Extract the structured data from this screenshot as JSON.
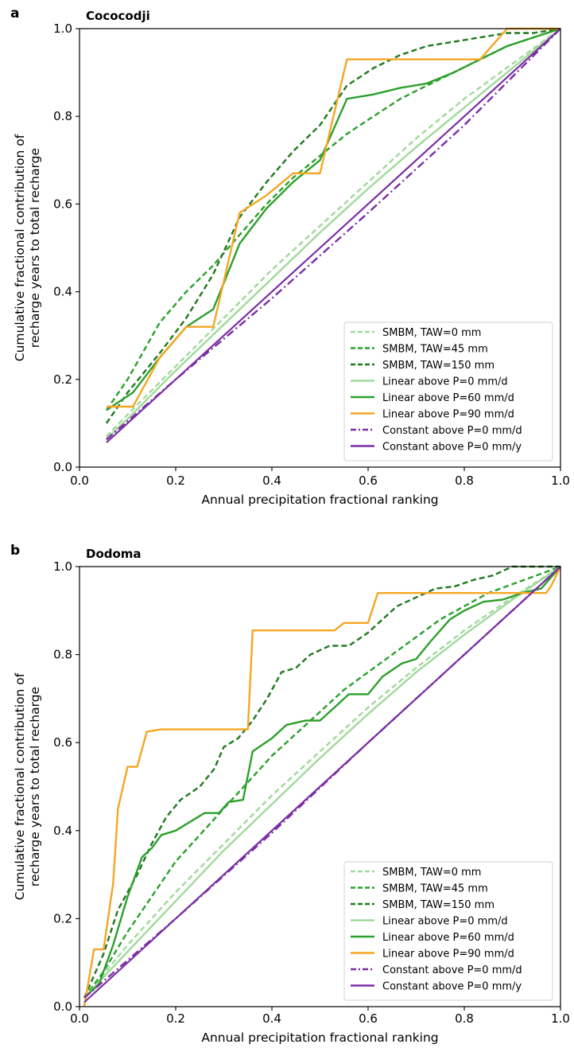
{
  "figure": {
    "panel_letters": [
      "a",
      "b"
    ]
  },
  "chart_data": [
    {
      "panel": "a",
      "type": "line",
      "title": "Cococodji",
      "xlabel": "Annual precipitation fractional ranking",
      "ylabel": [
        "Cumulative fractional contribution of",
        "recharge years to total recharge"
      ],
      "xlim": [
        0,
        1
      ],
      "ylim": [
        0,
        1
      ],
      "xticks": [
        "0.0",
        "0.2",
        "0.4",
        "0.6",
        "0.8",
        "1.0"
      ],
      "yticks": [
        "0.0",
        "0.2",
        "0.4",
        "0.6",
        "0.8",
        "1.0"
      ],
      "grid": false,
      "legend_position": "lower-right",
      "series": [
        {
          "name": "SMBM, TAW=0 mm",
          "color": "#a1d99b",
          "style": "dashed",
          "points": [
            [
              0.056,
              0.07
            ],
            [
              0.1,
              0.12
            ],
            [
              0.2,
              0.23
            ],
            [
              0.3,
              0.34
            ],
            [
              0.4,
              0.45
            ],
            [
              0.5,
              0.55
            ],
            [
              0.6,
              0.65
            ],
            [
              0.7,
              0.75
            ],
            [
              0.8,
              0.84
            ],
            [
              0.9,
              0.92
            ],
            [
              1.0,
              1.0
            ]
          ]
        },
        {
          "name": "SMBM, TAW=45 mm",
          "color": "#2ca02c",
          "style": "dashed",
          "points": [
            [
              0.056,
              0.13
            ],
            [
              0.1,
              0.2
            ],
            [
              0.167,
              0.33
            ],
            [
              0.222,
              0.4
            ],
            [
              0.278,
              0.46
            ],
            [
              0.333,
              0.53
            ],
            [
              0.389,
              0.6
            ],
            [
              0.444,
              0.66
            ],
            [
              0.5,
              0.71
            ],
            [
              0.556,
              0.76
            ],
            [
              0.611,
              0.8
            ],
            [
              0.667,
              0.84
            ],
            [
              0.722,
              0.87
            ],
            [
              0.778,
              0.9
            ],
            [
              0.833,
              0.93
            ],
            [
              0.889,
              0.96
            ],
            [
              0.944,
              0.98
            ],
            [
              1.0,
              1.0
            ]
          ]
        },
        {
          "name": "SMBM, TAW=150 mm",
          "color": "#1e7a1e",
          "style": "dashed",
          "points": [
            [
              0.056,
              0.1
            ],
            [
              0.1,
              0.17
            ],
            [
              0.167,
              0.26
            ],
            [
              0.222,
              0.34
            ],
            [
              0.278,
              0.44
            ],
            [
              0.333,
              0.57
            ],
            [
              0.389,
              0.65
            ],
            [
              0.444,
              0.72
            ],
            [
              0.5,
              0.78
            ],
            [
              0.556,
              0.87
            ],
            [
              0.611,
              0.91
            ],
            [
              0.667,
              0.94
            ],
            [
              0.722,
              0.96
            ],
            [
              0.778,
              0.97
            ],
            [
              0.833,
              0.98
            ],
            [
              0.889,
              0.99
            ],
            [
              0.944,
              0.99
            ],
            [
              1.0,
              1.0
            ]
          ]
        },
        {
          "name": "Linear above P=0 mm/d",
          "color": "#a1d99b",
          "style": "solid",
          "points": [
            [
              0.056,
              0.065
            ],
            [
              0.1,
              0.11
            ],
            [
              0.2,
              0.22
            ],
            [
              0.3,
              0.325
            ],
            [
              0.4,
              0.43
            ],
            [
              0.5,
              0.535
            ],
            [
              0.6,
              0.635
            ],
            [
              0.7,
              0.73
            ],
            [
              0.8,
              0.82
            ],
            [
              0.9,
              0.91
            ],
            [
              1.0,
              1.0
            ]
          ]
        },
        {
          "name": "Linear above P=60 mm/d",
          "color": "#2ca02c",
          "style": "solid",
          "points": [
            [
              0.056,
              0.13
            ],
            [
              0.111,
              0.17
            ],
            [
              0.167,
              0.25
            ],
            [
              0.222,
              0.32
            ],
            [
              0.278,
              0.36
            ],
            [
              0.333,
              0.51
            ],
            [
              0.389,
              0.59
            ],
            [
              0.444,
              0.65
            ],
            [
              0.5,
              0.7
            ],
            [
              0.556,
              0.84
            ],
            [
              0.611,
              0.85
            ],
            [
              0.667,
              0.865
            ],
            [
              0.722,
              0.875
            ],
            [
              0.778,
              0.9
            ],
            [
              0.833,
              0.93
            ],
            [
              0.889,
              0.96
            ],
            [
              0.944,
              0.98
            ],
            [
              1.0,
              1.0
            ]
          ]
        },
        {
          "name": "Linear above P=90 mm/d",
          "color": "#f5a623",
          "style": "solid",
          "points": [
            [
              0.056,
              0.138
            ],
            [
              0.111,
              0.138
            ],
            [
              0.167,
              0.25
            ],
            [
              0.222,
              0.32
            ],
            [
              0.278,
              0.32
            ],
            [
              0.333,
              0.58
            ],
            [
              0.389,
              0.62
            ],
            [
              0.444,
              0.67
            ],
            [
              0.5,
              0.67
            ],
            [
              0.556,
              0.93
            ],
            [
              0.611,
              0.93
            ],
            [
              0.667,
              0.93
            ],
            [
              0.722,
              0.93
            ],
            [
              0.778,
              0.93
            ],
            [
              0.833,
              0.93
            ],
            [
              0.889,
              1.0
            ],
            [
              0.944,
              1.0
            ],
            [
              1.0,
              1.0
            ]
          ]
        },
        {
          "name": "Constant above P=0 mm/d",
          "color": "#7b2fa3",
          "style": "dashdot",
          "points": [
            [
              0.056,
              0.063
            ],
            [
              0.2,
              0.2
            ],
            [
              0.4,
              0.385
            ],
            [
              0.6,
              0.58
            ],
            [
              0.8,
              0.78
            ],
            [
              1.0,
              1.0
            ]
          ]
        },
        {
          "name": "Constant above P=0 mm/y",
          "color": "#7b2fa3",
          "style": "solid",
          "points": [
            [
              0.056,
              0.056
            ],
            [
              1.0,
              1.0
            ]
          ]
        }
      ]
    },
    {
      "panel": "b",
      "type": "line",
      "title": "Dodoma",
      "xlabel": "Annual precipitation fractional ranking",
      "ylabel": [
        "Cumulative fractional contribution of",
        "recharge years to total recharge"
      ],
      "xlim": [
        0,
        1
      ],
      "ylim": [
        0,
        1
      ],
      "xticks": [
        "0.0",
        "0.2",
        "0.4",
        "0.6",
        "0.8",
        "1.0"
      ],
      "yticks": [
        "0.0",
        "0.2",
        "0.4",
        "0.6",
        "0.8",
        "1.0"
      ],
      "grid": false,
      "legend_position": "lower-right",
      "series": [
        {
          "name": "SMBM, TAW=0 mm",
          "color": "#a1d99b",
          "style": "dashed",
          "points": [
            [
              0.01,
              0.02
            ],
            [
              0.1,
              0.14
            ],
            [
              0.2,
              0.26
            ],
            [
              0.3,
              0.37
            ],
            [
              0.4,
              0.48
            ],
            [
              0.5,
              0.58
            ],
            [
              0.6,
              0.68
            ],
            [
              0.7,
              0.77
            ],
            [
              0.8,
              0.855
            ],
            [
              0.9,
              0.93
            ],
            [
              1.0,
              1.0
            ]
          ]
        },
        {
          "name": "SMBM, TAW=45 mm",
          "color": "#2ca02c",
          "style": "dashed",
          "points": [
            [
              0.01,
              0.02
            ],
            [
              0.05,
              0.08
            ],
            [
              0.1,
              0.17
            ],
            [
              0.15,
              0.25
            ],
            [
              0.2,
              0.33
            ],
            [
              0.25,
              0.39
            ],
            [
              0.3,
              0.45
            ],
            [
              0.35,
              0.51
            ],
            [
              0.4,
              0.57
            ],
            [
              0.45,
              0.62
            ],
            [
              0.5,
              0.67
            ],
            [
              0.55,
              0.72
            ],
            [
              0.6,
              0.76
            ],
            [
              0.65,
              0.8
            ],
            [
              0.7,
              0.84
            ],
            [
              0.75,
              0.88
            ],
            [
              0.8,
              0.91
            ],
            [
              0.85,
              0.94
            ],
            [
              0.9,
              0.96
            ],
            [
              0.95,
              0.98
            ],
            [
              1.0,
              1.0
            ]
          ]
        },
        {
          "name": "SMBM, TAW=150 mm",
          "color": "#1e7a1e",
          "style": "dashed",
          "points": [
            [
              0.01,
              0.02
            ],
            [
              0.05,
              0.12
            ],
            [
              0.08,
              0.22
            ],
            [
              0.12,
              0.3
            ],
            [
              0.15,
              0.37
            ],
            [
              0.18,
              0.43
            ],
            [
              0.21,
              0.47
            ],
            [
              0.25,
              0.5
            ],
            [
              0.28,
              0.54
            ],
            [
              0.3,
              0.59
            ],
            [
              0.33,
              0.61
            ],
            [
              0.36,
              0.65
            ],
            [
              0.39,
              0.7
            ],
            [
              0.42,
              0.76
            ],
            [
              0.45,
              0.77
            ],
            [
              0.48,
              0.8
            ],
            [
              0.52,
              0.82
            ],
            [
              0.56,
              0.82
            ],
            [
              0.6,
              0.85
            ],
            [
              0.63,
              0.88
            ],
            [
              0.66,
              0.91
            ],
            [
              0.7,
              0.93
            ],
            [
              0.74,
              0.95
            ],
            [
              0.78,
              0.955
            ],
            [
              0.82,
              0.97
            ],
            [
              0.86,
              0.98
            ],
            [
              0.9,
              1.0
            ],
            [
              0.95,
              1.0
            ],
            [
              1.0,
              1.0
            ]
          ]
        },
        {
          "name": "Linear above P=0 mm/d",
          "color": "#a1d99b",
          "style": "solid",
          "points": [
            [
              0.01,
              0.02
            ],
            [
              0.1,
              0.125
            ],
            [
              0.2,
              0.24
            ],
            [
              0.3,
              0.355
            ],
            [
              0.4,
              0.46
            ],
            [
              0.5,
              0.565
            ],
            [
              0.6,
              0.665
            ],
            [
              0.7,
              0.76
            ],
            [
              0.8,
              0.845
            ],
            [
              0.9,
              0.925
            ],
            [
              1.0,
              1.0
            ]
          ]
        },
        {
          "name": "Linear above P=60 mm/d",
          "color": "#2ca02c",
          "style": "solid",
          "points": [
            [
              0.01,
              0.02
            ],
            [
              0.04,
              0.05
            ],
            [
              0.07,
              0.14
            ],
            [
              0.1,
              0.25
            ],
            [
              0.13,
              0.34
            ],
            [
              0.15,
              0.36
            ],
            [
              0.17,
              0.39
            ],
            [
              0.2,
              0.4
            ],
            [
              0.23,
              0.42
            ],
            [
              0.26,
              0.44
            ],
            [
              0.29,
              0.44
            ],
            [
              0.31,
              0.465
            ],
            [
              0.34,
              0.47
            ],
            [
              0.36,
              0.58
            ],
            [
              0.4,
              0.61
            ],
            [
              0.43,
              0.64
            ],
            [
              0.47,
              0.65
            ],
            [
              0.5,
              0.65
            ],
            [
              0.53,
              0.68
            ],
            [
              0.56,
              0.71
            ],
            [
              0.6,
              0.71
            ],
            [
              0.63,
              0.75
            ],
            [
              0.67,
              0.78
            ],
            [
              0.7,
              0.79
            ],
            [
              0.73,
              0.83
            ],
            [
              0.77,
              0.88
            ],
            [
              0.8,
              0.9
            ],
            [
              0.84,
              0.92
            ],
            [
              0.88,
              0.925
            ],
            [
              0.92,
              0.94
            ],
            [
              0.96,
              0.95
            ],
            [
              1.0,
              1.0
            ]
          ]
        },
        {
          "name": "Linear above P=90 mm/d",
          "color": "#f5a623",
          "style": "solid",
          "points": [
            [
              0.01,
              0.0
            ],
            [
              0.03,
              0.13
            ],
            [
              0.05,
              0.13
            ],
            [
              0.07,
              0.28
            ],
            [
              0.08,
              0.45
            ],
            [
              0.1,
              0.545
            ],
            [
              0.12,
              0.545
            ],
            [
              0.14,
              0.625
            ],
            [
              0.17,
              0.63
            ],
            [
              0.3,
              0.63
            ],
            [
              0.35,
              0.63
            ],
            [
              0.36,
              0.855
            ],
            [
              0.53,
              0.855
            ],
            [
              0.55,
              0.872
            ],
            [
              0.6,
              0.872
            ],
            [
              0.62,
              0.94
            ],
            [
              0.97,
              0.94
            ],
            [
              0.98,
              0.955
            ],
            [
              1.0,
              1.0
            ]
          ]
        },
        {
          "name": "Constant above P=0 mm/d",
          "color": "#7b2fa3",
          "style": "dashdot",
          "points": [
            [
              0.01,
              0.02
            ],
            [
              0.2,
              0.2
            ],
            [
              0.4,
              0.395
            ],
            [
              0.6,
              0.6
            ],
            [
              0.8,
              0.8
            ],
            [
              1.0,
              1.0
            ]
          ]
        },
        {
          "name": "Constant above P=0 mm/y",
          "color": "#7b2fa3",
          "style": "solid",
          "points": [
            [
              0.01,
              0.01
            ],
            [
              1.0,
              1.0
            ]
          ]
        }
      ]
    }
  ]
}
